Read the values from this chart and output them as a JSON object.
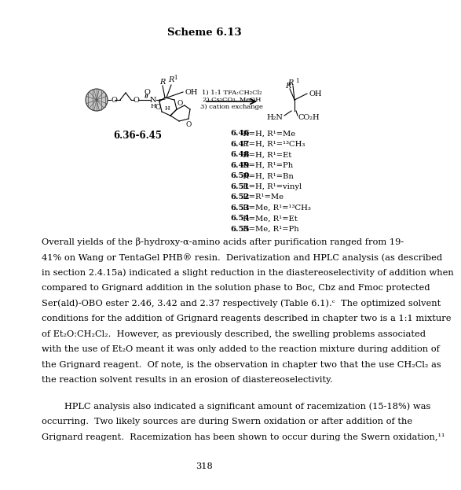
{
  "background_color": "#f5f4f0",
  "scheme_title": "Scheme 6.13",
  "compound_label_left": "6.36-6.45",
  "compounds_right": [
    [
      "6.46",
      " R=H, R¹=Me"
    ],
    [
      "6.47",
      " R=H, R¹=¹³CH₃"
    ],
    [
      "6.48",
      " R=H, R¹=Et"
    ],
    [
      "6.49",
      " R=H, R¹=Ph"
    ],
    [
      "6.50",
      " R=H, R¹=Bn"
    ],
    [
      "6.51",
      " R=H, R¹=vinyl"
    ],
    [
      "6.52",
      " R=R¹=Me"
    ],
    [
      "6.53",
      " R=Me, R¹=¹³CH₃"
    ],
    [
      "6.54",
      " R=Me, R¹=Et"
    ],
    [
      "6.55",
      " R=Me, R¹=Ph"
    ]
  ],
  "reagents_lines": [
    "1) 1:1 TFA:CH₂Cl₂",
    "2) Cs₂CO₃, MeOH",
    "3) cation exchange"
  ],
  "p1_lines": [
    "Overall yields of the β-hydroxy-α-amino acids after purification ranged from 19-",
    "41% on Wang or TentaGel PHB® resin.  Derivatization and HPLC analysis (as described",
    "in section 2.4.15a) indicated a slight reduction in the diastereoselectivity of addition when",
    "compared to Grignard addition in the solution phase to Boc, Cbz and Fmoc protected",
    "Ser(ald)-OBO ester 2.46, 3.42 and 2.37 respectively (Table 6.1).ᶜ  The optimized solvent",
    "conditions for the addition of Grignard reagents described in chapter two is a 1:1 mixture",
    "of Et₂O:CH₂Cl₂.  However, as previously described, the swelling problems associated",
    "with the use of Et₂O meant it was only added to the reaction mixture during addition of",
    "the Grignard reagent.  Of note, is the observation in chapter two that the use CH₂Cl₂ as",
    "the reaction solvent results in an erosion of diastereoselectivity."
  ],
  "p2_lines": [
    "        HPLC analysis also indicated a significant amount of racemization (15-18%) was",
    "occurring.  Two likely sources are during Swern oxidation or after addition of the",
    "Grignard reagent.  Racemization has been shown to occur during the Swern oxidation,¹¹"
  ],
  "page_number": "318",
  "bold_in_p1": [
    "2.46",
    "3.42",
    "2.37"
  ]
}
